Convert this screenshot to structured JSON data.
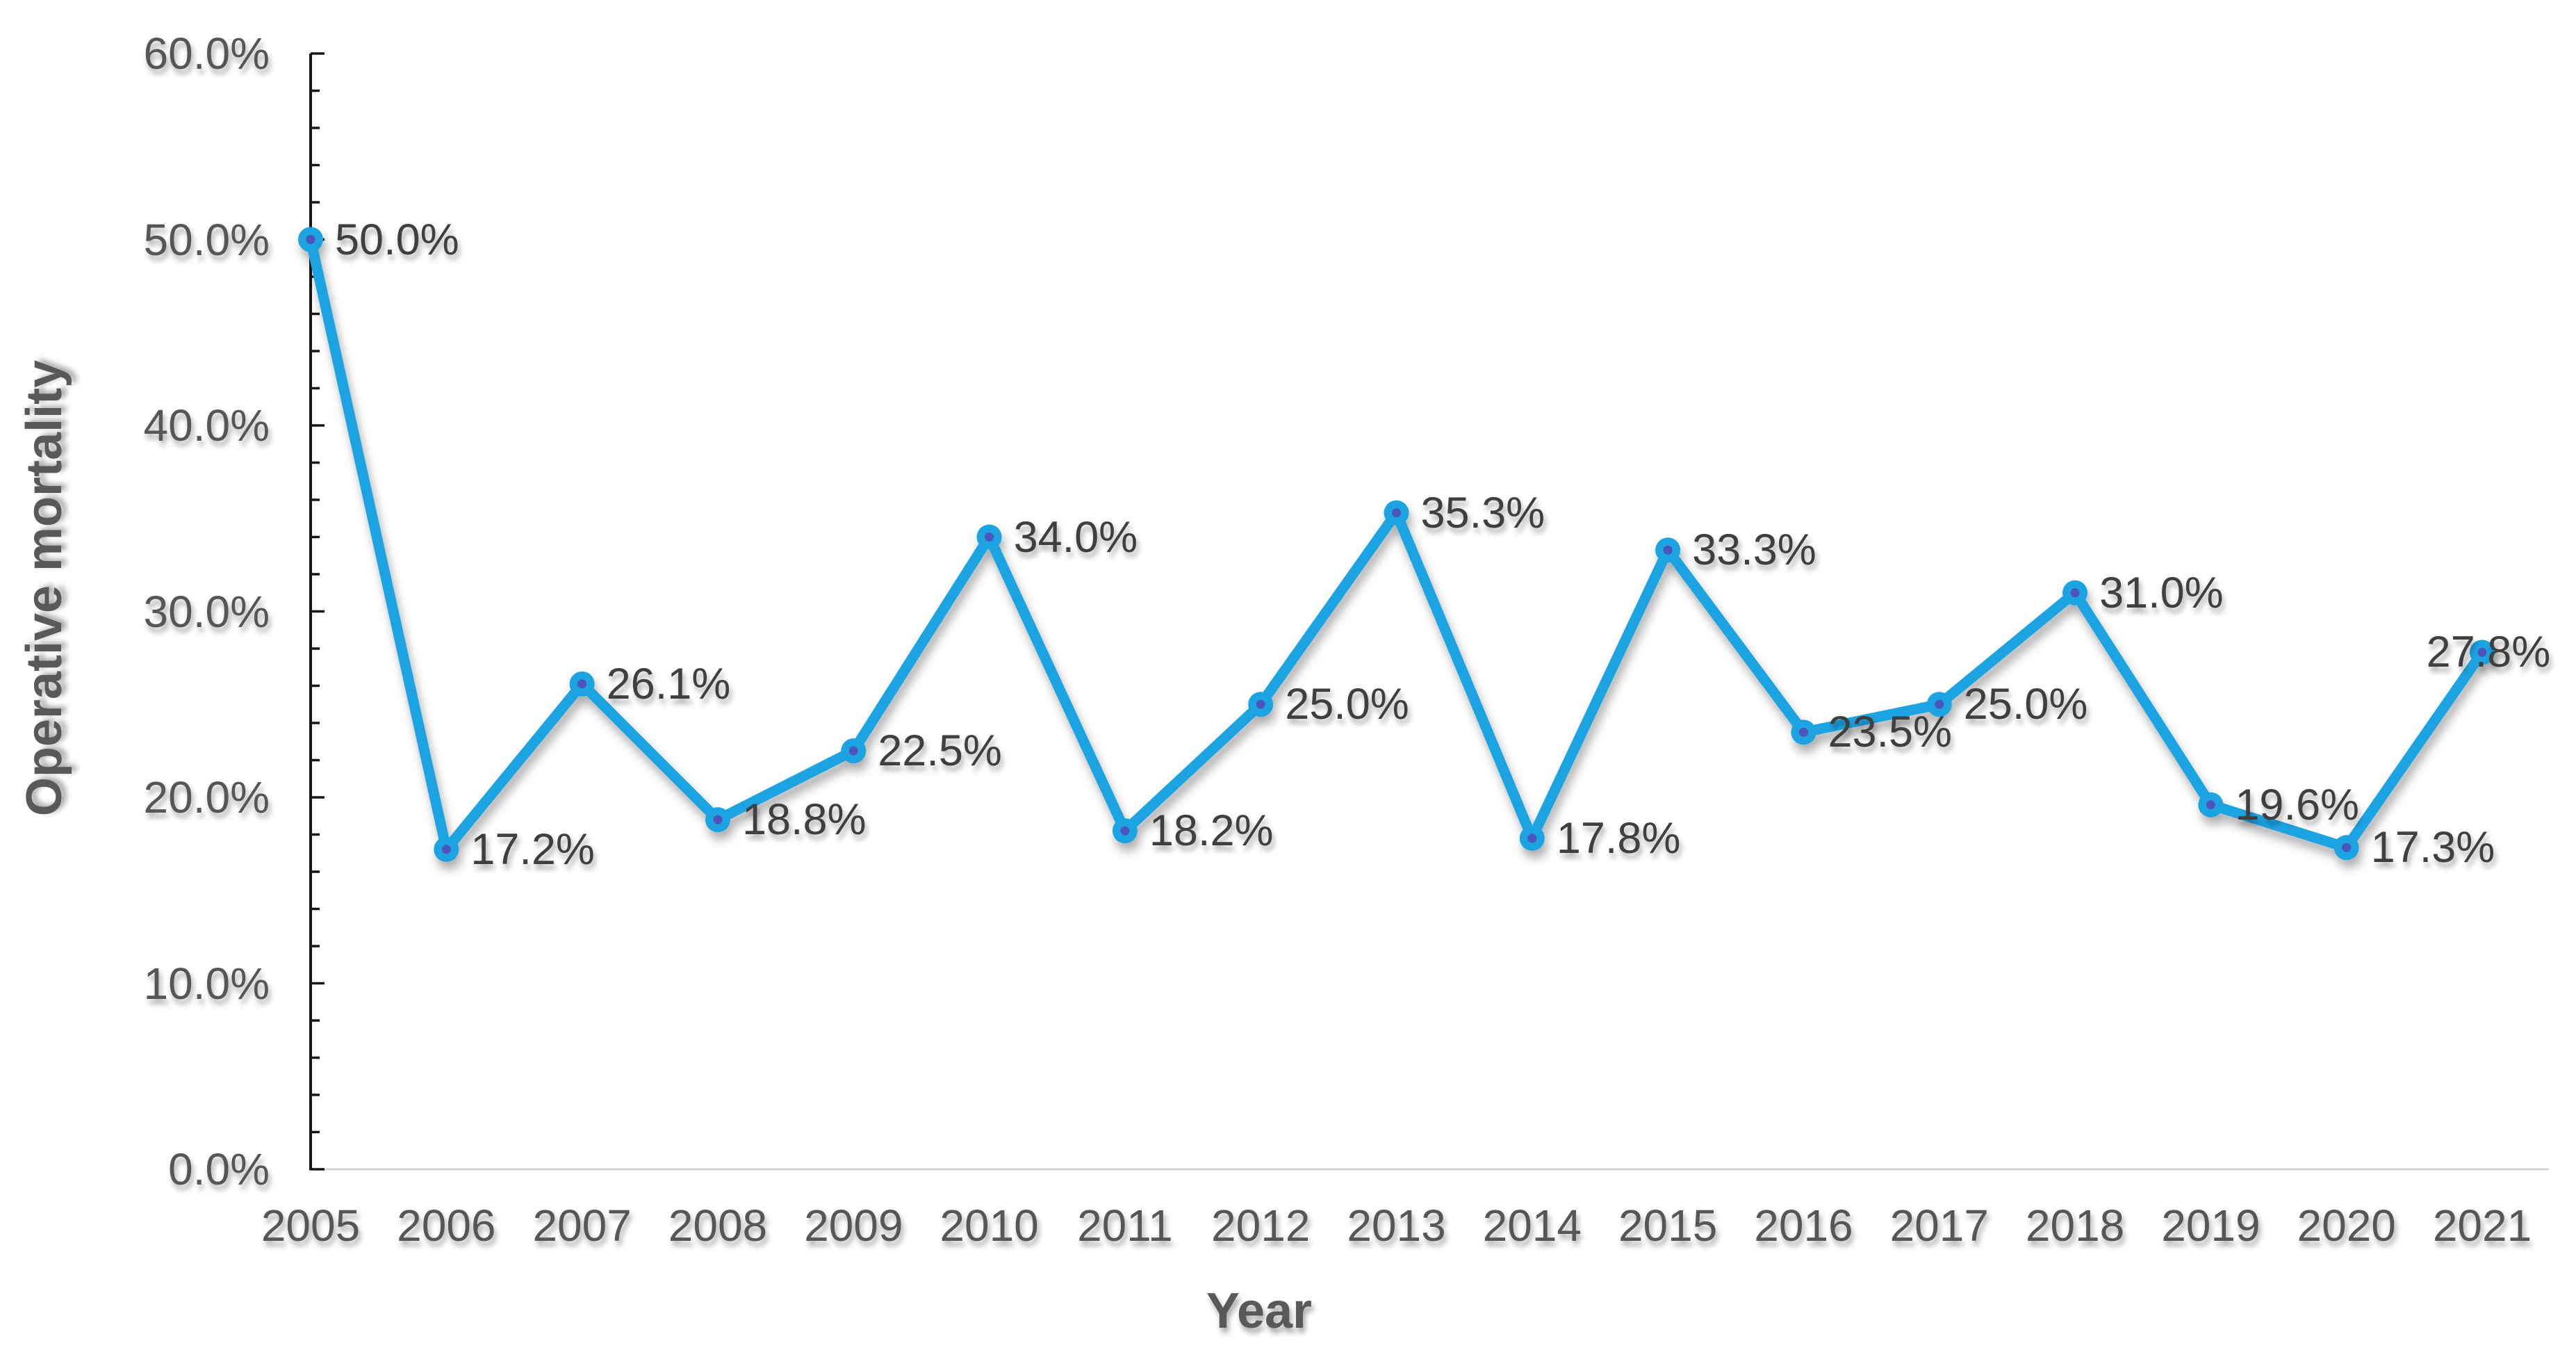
{
  "chart_data": {
    "type": "line",
    "title": "",
    "xlabel": "Year",
    "ylabel": "Operative mortality",
    "x": [
      2005,
      2006,
      2007,
      2008,
      2009,
      2010,
      2011,
      2012,
      2013,
      2014,
      2015,
      2016,
      2017,
      2018,
      2019,
      2020,
      2021
    ],
    "series": [
      {
        "name": "Operative mortality",
        "values": [
          50.0,
          17.2,
          26.1,
          18.8,
          22.5,
          34.0,
          18.2,
          25.0,
          35.3,
          17.8,
          33.3,
          23.5,
          25.0,
          31.0,
          19.6,
          17.3,
          27.8
        ]
      }
    ],
    "point_labels": [
      "50.0%",
      "17.2%",
      "26.1%",
      "18.8%",
      "22.5%",
      "34.0%",
      "18.2%",
      "25.0%",
      "35.3%",
      "17.8%",
      "33.3%",
      "23.5%",
      "25.0%",
      "31.0%",
      "19.6%",
      "17.3%",
      "27.8%"
    ],
    "y_tick_labels": [
      "0.0%",
      "10.0%",
      "20.0%",
      "30.0%",
      "40.0%",
      "50.0%",
      "60.0%"
    ],
    "y_tick_values": [
      0,
      10,
      20,
      30,
      40,
      50,
      60
    ],
    "ylim": [
      0,
      60
    ],
    "y_minor_step": 2,
    "grid": false,
    "legend": "none",
    "marker_style": "circle-with-center-dot",
    "colors": {
      "line": "#1FA3E2",
      "marker": "#1FA3E2",
      "marker_center": "#4E55B8",
      "data_label": "#3F3F3F",
      "tick_label": "#565656",
      "axis_title": "#595959",
      "axis_line": "#161616",
      "baseline": "#D4D4D4"
    }
  }
}
